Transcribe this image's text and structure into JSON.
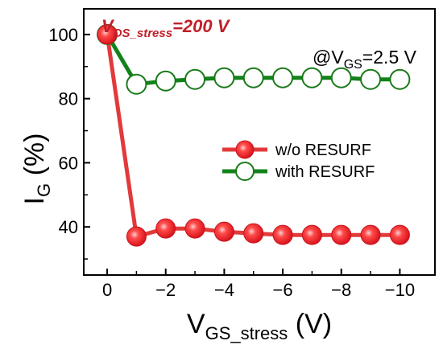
{
  "chart_data": {
    "type": "line",
    "x": [
      0,
      -1,
      -2,
      -3,
      -4,
      -5,
      -6,
      -7,
      -8,
      -9,
      -10
    ],
    "series": [
      {
        "name": "w/o RESURF",
        "values": [
          100,
          37,
          39.5,
          39.5,
          38.5,
          38,
          37.5,
          37.5,
          37.5,
          37.5,
          37.5
        ],
        "line_color": "#e23a3a",
        "marker": "filled-circle",
        "marker_color": "#e8262b"
      },
      {
        "name": "with RESURF",
        "values": [
          100,
          84.5,
          85.5,
          86,
          86.5,
          86.5,
          86.5,
          86.5,
          86.5,
          86,
          86
        ],
        "line_color": "#12821a",
        "marker": "open-circle",
        "marker_color": "#1a7a1a"
      }
    ],
    "xlabel": {
      "main": "V",
      "sub": "GS_stress",
      "unit": " (V)"
    },
    "ylabel": {
      "main": "I",
      "sub": "G",
      "unit": " (%)"
    },
    "xlim": [
      0.8,
      -11.2
    ],
    "ylim": [
      25,
      108
    ],
    "xticks": [
      0,
      -2,
      -4,
      -6,
      -8,
      -10
    ],
    "xtick_labels": [
      "0",
      "−2",
      "−4",
      "−6",
      "−8",
      "−10"
    ],
    "yticks": [
      40,
      60,
      80,
      100
    ],
    "ytick_labels": [
      "40",
      "60",
      "80",
      "100"
    ],
    "grid": false,
    "legend_position": "center-right",
    "annotations": {
      "stress": {
        "main": "V",
        "sub": "DS_stress",
        "rest": "=200 V",
        "color": "#c0202a"
      },
      "condition": {
        "prefix": "@V",
        "sub": "GS",
        "rest": "=2.5 V"
      }
    }
  }
}
